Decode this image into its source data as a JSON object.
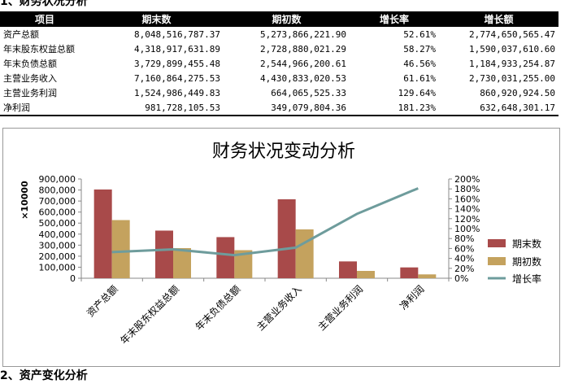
{
  "section1_title": "1、财务状况分析",
  "section2_title": "2、资产变化分析",
  "table": {
    "headers": [
      "项目",
      "期末数",
      "期初数",
      "增长率",
      "增长额"
    ],
    "rows": [
      [
        "资产总额",
        "8,048,516,787.37",
        "5,273,866,221.90",
        "52.61%",
        "2,774,650,565.47"
      ],
      [
        "年末股东权益总额",
        "4,318,917,631.89",
        "2,728,880,021.29",
        "58.27%",
        "1,590,037,610.60"
      ],
      [
        "年末负债总额",
        "3,729,899,455.48",
        "2,544,966,200.61",
        "46.56%",
        "1,184,933,254.87"
      ],
      [
        "主营业务收入",
        "7,160,864,275.53",
        "4,430,833,020.53",
        "61.61%",
        "2,730,031,255.00"
      ],
      [
        "主营业务利润",
        "1,524,986,449.83",
        "664,065,525.33",
        "129.64%",
        "860,920,924.50"
      ],
      [
        "净利润",
        "981,728,105.53",
        "349,079,804.36",
        "181.23%",
        "632,648,301.17"
      ]
    ]
  },
  "chart_data": {
    "type": "bar",
    "title": "财务状况变动分析",
    "ylabel": "×10000",
    "categories": [
      "资产总额",
      "年末股东权益总额",
      "年末负债总额",
      "主营业务收入",
      "主营业务利润",
      "净利润"
    ],
    "series": [
      {
        "name": "期末数",
        "type": "bar",
        "color": "#a84a4a",
        "values": [
          804852,
          431892,
          372990,
          716086,
          152499,
          98173
        ]
      },
      {
        "name": "期初数",
        "type": "bar",
        "color": "#c4a25e",
        "values": [
          527387,
          272888,
          254497,
          443083,
          66407,
          34908
        ]
      },
      {
        "name": "增长率",
        "type": "line",
        "axis": "right",
        "color": "#6e9c9c",
        "values": [
          52.61,
          58.27,
          46.56,
          61.61,
          129.64,
          181.23
        ]
      }
    ],
    "yticks": [
      "0",
      "100,000",
      "200,000",
      "300,000",
      "400,000",
      "500,000",
      "600,000",
      "700,000",
      "800,000",
      "900,000"
    ],
    "y2ticks": [
      "0%",
      "20%",
      "40%",
      "60%",
      "80%",
      "100%",
      "120%",
      "140%",
      "160%",
      "180%",
      "200%"
    ],
    "ylim": [
      0,
      900000
    ],
    "y2lim": [
      0,
      200
    ],
    "grid": false,
    "legend": "right"
  }
}
